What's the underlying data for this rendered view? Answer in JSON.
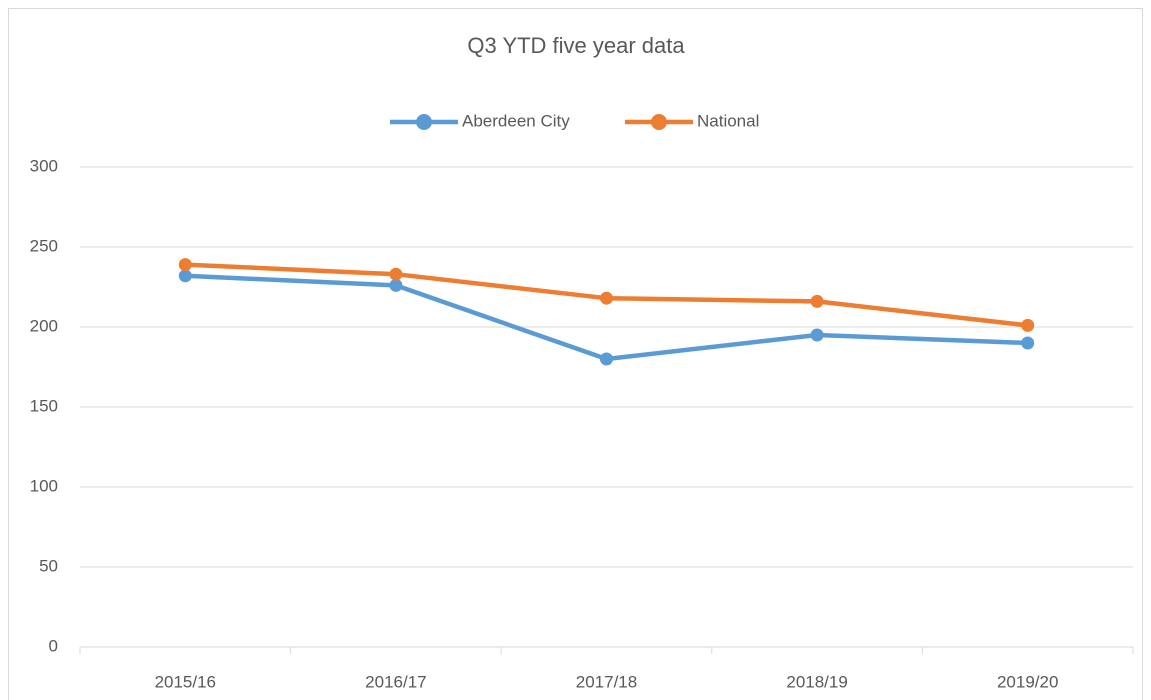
{
  "chart_data": {
    "type": "line",
    "title": "Q3 YTD five year data",
    "categories": [
      "2015/16",
      "2016/17",
      "2017/18",
      "2018/19",
      "2019/20"
    ],
    "series": [
      {
        "name": "Aberdeen City",
        "color": "#5b9bd5",
        "values": [
          232,
          226,
          180,
          195,
          190
        ]
      },
      {
        "name": "National",
        "color": "#ed7d31",
        "values": [
          239,
          233,
          218,
          216,
          201
        ]
      }
    ],
    "ylim": [
      0,
      300
    ],
    "yticks": [
      0,
      50,
      100,
      150,
      200,
      250,
      300
    ],
    "grid": true,
    "legend": "top"
  }
}
